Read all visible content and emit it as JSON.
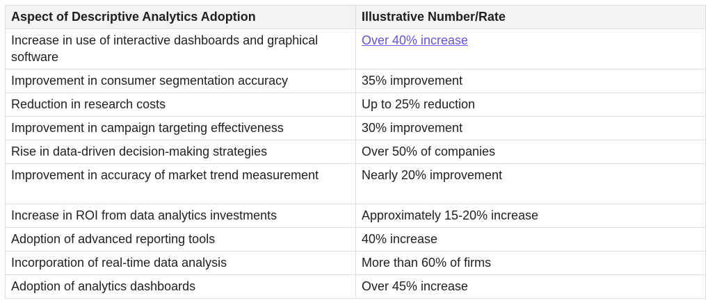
{
  "table": {
    "headers": [
      "Aspect of Descriptive Analytics Adoption",
      "Illustrative Number/Rate"
    ],
    "rows": [
      {
        "aspect": "Increase in use of interactive dashboards and graphical software",
        "value": "Over 40% increase",
        "value_is_link": true
      },
      {
        "aspect": "Improvement in consumer segmentation accuracy",
        "value": "35% improvement"
      },
      {
        "aspect": "Reduction in research costs",
        "value": "Up to 25% reduction"
      },
      {
        "aspect": "Improvement in campaign targeting effectiveness",
        "value": "30% improvement"
      },
      {
        "aspect": "Rise in data-driven decision-making strategies",
        "value": "Over 50% of companies"
      },
      {
        "aspect": "Improvement in accuracy of market trend measurement",
        "value": "Nearly 20% improvement"
      },
      {
        "aspect": "Increase in ROI from data analytics investments",
        "value": "Approximately 15-20% increase"
      },
      {
        "aspect": "Adoption of advanced reporting tools",
        "value": "40% increase"
      },
      {
        "aspect": "Incorporation of real-time data analysis",
        "value": "More than 60% of firms"
      },
      {
        "aspect": "Adoption of analytics dashboards",
        "value": "Over 45% increase"
      }
    ]
  },
  "colors": {
    "header_bg": "#f1f3f4",
    "border": "#dadce0",
    "link": "#6a4fd8",
    "text": "#1f1f1f"
  }
}
